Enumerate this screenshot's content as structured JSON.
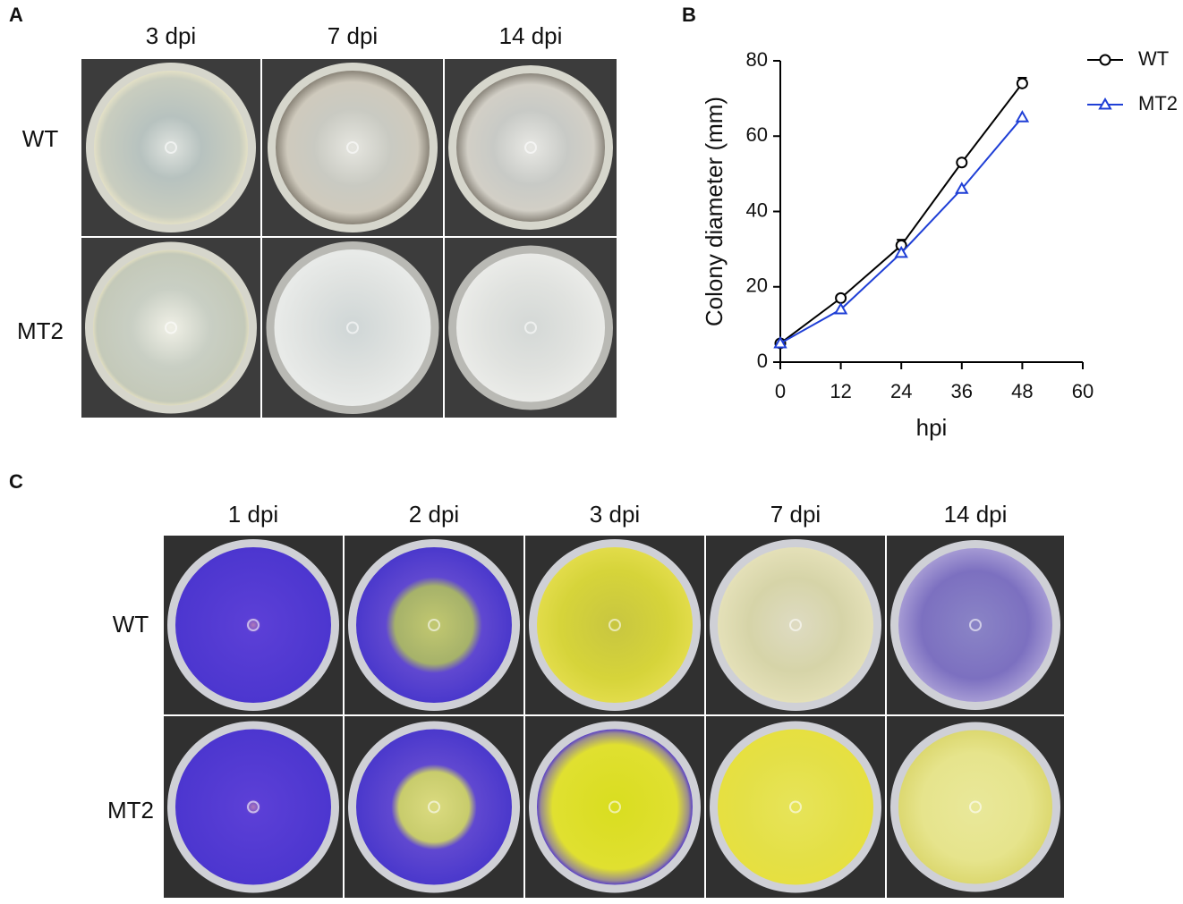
{
  "panel_a": {
    "label": "A",
    "columns": [
      "3 dpi",
      "7 dpi",
      "14 dpi"
    ],
    "rows": [
      "WT",
      "MT2"
    ]
  },
  "panel_b": {
    "label": "B"
  },
  "panel_c": {
    "label": "C",
    "columns": [
      "1 dpi",
      "2 dpi",
      "3 dpi",
      "7 dpi",
      "14 dpi"
    ],
    "rows": [
      "WT",
      "MT2"
    ]
  },
  "chart_data": {
    "type": "line",
    "xlabel": "hpi",
    "ylabel": "Colony diameter (mm)",
    "x": [
      0,
      12,
      24,
      36,
      48
    ],
    "series": [
      {
        "name": "WT",
        "color": "#000000",
        "marker": "circle",
        "values": [
          5,
          17,
          31,
          53,
          74
        ],
        "errors": [
          0.5,
          0.5,
          1.5,
          0.5,
          1.5
        ]
      },
      {
        "name": "MT2",
        "color": "#1f3fd6",
        "marker": "triangle",
        "values": [
          5,
          14,
          29,
          46,
          65
        ]
      }
    ],
    "xlim": [
      0,
      60
    ],
    "xticks": [
      0,
      12,
      24,
      36,
      48,
      60
    ],
    "ylim": [
      0,
      80
    ],
    "yticks": [
      0,
      20,
      40,
      60,
      80
    ],
    "legend": "upper right"
  }
}
